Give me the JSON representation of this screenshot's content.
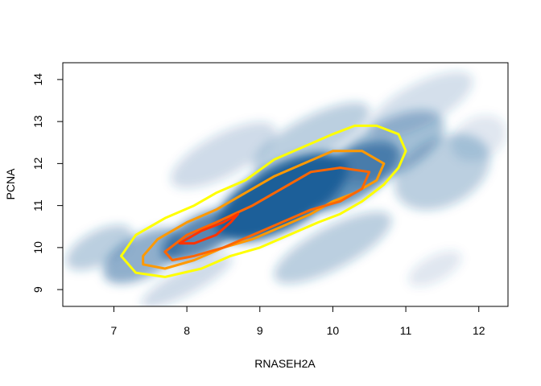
{
  "chart_data": {
    "type": "heatmap",
    "subtype": "2d-density-with-contours",
    "title": "",
    "xlabel": "RNASEH2A",
    "ylabel": "PCNA",
    "xlim": [
      6.3,
      12.4
    ],
    "ylim": [
      8.6,
      14.4
    ],
    "xticks": [
      "7",
      "8",
      "9",
      "10",
      "11",
      "12"
    ],
    "yticks": [
      "9",
      "10",
      "11",
      "12",
      "13",
      "14"
    ],
    "grid": false,
    "density_color": "#1f5f99",
    "density_blobs": [
      {
        "x": 9.3,
        "y": 11.2,
        "sx": 1.0,
        "sy": 0.75,
        "w": 1.0
      },
      {
        "x": 8.2,
        "y": 10.3,
        "sx": 0.6,
        "sy": 0.45,
        "w": 0.75
      },
      {
        "x": 10.2,
        "y": 11.7,
        "sx": 0.8,
        "sy": 0.6,
        "w": 0.7
      },
      {
        "x": 7.4,
        "y": 9.8,
        "sx": 0.6,
        "sy": 0.5,
        "w": 0.5
      },
      {
        "x": 10.8,
        "y": 12.4,
        "sx": 0.8,
        "sy": 0.65,
        "w": 0.4
      },
      {
        "x": 11.5,
        "y": 11.8,
        "sx": 0.7,
        "sy": 0.8,
        "w": 0.3
      },
      {
        "x": 9.7,
        "y": 12.6,
        "sx": 0.9,
        "sy": 0.5,
        "w": 0.3
      },
      {
        "x": 8.5,
        "y": 12.2,
        "sx": 0.8,
        "sy": 0.5,
        "w": 0.22
      },
      {
        "x": 6.8,
        "y": 10.0,
        "sx": 0.5,
        "sy": 0.4,
        "w": 0.3
      },
      {
        "x": 10.0,
        "y": 10.0,
        "sx": 0.9,
        "sy": 0.5,
        "w": 0.3
      },
      {
        "x": 11.2,
        "y": 13.4,
        "sx": 0.8,
        "sy": 0.5,
        "w": 0.2
      },
      {
        "x": 8.0,
        "y": 9.2,
        "sx": 0.7,
        "sy": 0.3,
        "w": 0.22
      },
      {
        "x": 12.0,
        "y": 12.6,
        "sx": 0.4,
        "sy": 0.5,
        "w": 0.15
      },
      {
        "x": 11.4,
        "y": 9.5,
        "sx": 0.4,
        "sy": 0.3,
        "w": 0.15
      }
    ],
    "contours": [
      {
        "color": "#ffff00",
        "points": [
          [
            7.1,
            9.8
          ],
          [
            7.3,
            10.3
          ],
          [
            7.7,
            10.7
          ],
          [
            8.1,
            11.0
          ],
          [
            8.4,
            11.3
          ],
          [
            8.8,
            11.6
          ],
          [
            9.2,
            12.1
          ],
          [
            9.6,
            12.4
          ],
          [
            10.0,
            12.7
          ],
          [
            10.3,
            12.9
          ],
          [
            10.6,
            12.9
          ],
          [
            10.9,
            12.7
          ],
          [
            11.0,
            12.3
          ],
          [
            10.9,
            11.9
          ],
          [
            10.7,
            11.5
          ],
          [
            10.4,
            11.1
          ],
          [
            10.1,
            10.8
          ],
          [
            9.8,
            10.6
          ],
          [
            9.4,
            10.3
          ],
          [
            9.0,
            10.0
          ],
          [
            8.6,
            9.8
          ],
          [
            8.2,
            9.5
          ],
          [
            7.7,
            9.3
          ],
          [
            7.3,
            9.4
          ],
          [
            7.1,
            9.8
          ]
        ]
      },
      {
        "color": "#ff9900",
        "points": [
          [
            7.4,
            9.8
          ],
          [
            7.6,
            10.2
          ],
          [
            8.0,
            10.6
          ],
          [
            8.4,
            10.9
          ],
          [
            8.8,
            11.3
          ],
          [
            9.2,
            11.7
          ],
          [
            9.6,
            12.0
          ],
          [
            10.0,
            12.3
          ],
          [
            10.4,
            12.3
          ],
          [
            10.7,
            12.0
          ],
          [
            10.6,
            11.6
          ],
          [
            10.3,
            11.3
          ],
          [
            10.0,
            11.1
          ],
          [
            9.7,
            10.8
          ],
          [
            9.3,
            10.5
          ],
          [
            8.9,
            10.2
          ],
          [
            8.5,
            10.0
          ],
          [
            8.1,
            9.7
          ],
          [
            7.7,
            9.5
          ],
          [
            7.4,
            9.6
          ],
          [
            7.4,
            9.8
          ]
        ]
      },
      {
        "color": "#ff6600",
        "points": [
          [
            7.7,
            9.9
          ],
          [
            8.0,
            10.3
          ],
          [
            8.4,
            10.6
          ],
          [
            8.9,
            11.0
          ],
          [
            9.3,
            11.4
          ],
          [
            9.7,
            11.8
          ],
          [
            10.1,
            11.9
          ],
          [
            10.5,
            11.8
          ],
          [
            10.4,
            11.4
          ],
          [
            10.1,
            11.1
          ],
          [
            9.7,
            10.9
          ],
          [
            9.3,
            10.6
          ],
          [
            8.9,
            10.3
          ],
          [
            8.5,
            10.0
          ],
          [
            8.1,
            9.8
          ],
          [
            7.8,
            9.7
          ],
          [
            7.7,
            9.9
          ]
        ]
      },
      {
        "color": "#ff3300",
        "points": [
          [
            7.9,
            10.1
          ],
          [
            8.2,
            10.4
          ],
          [
            8.5,
            10.6
          ],
          [
            8.7,
            10.8
          ],
          [
            8.6,
            10.6
          ],
          [
            8.4,
            10.3
          ],
          [
            8.1,
            10.1
          ],
          [
            7.9,
            10.1
          ]
        ]
      }
    ]
  }
}
